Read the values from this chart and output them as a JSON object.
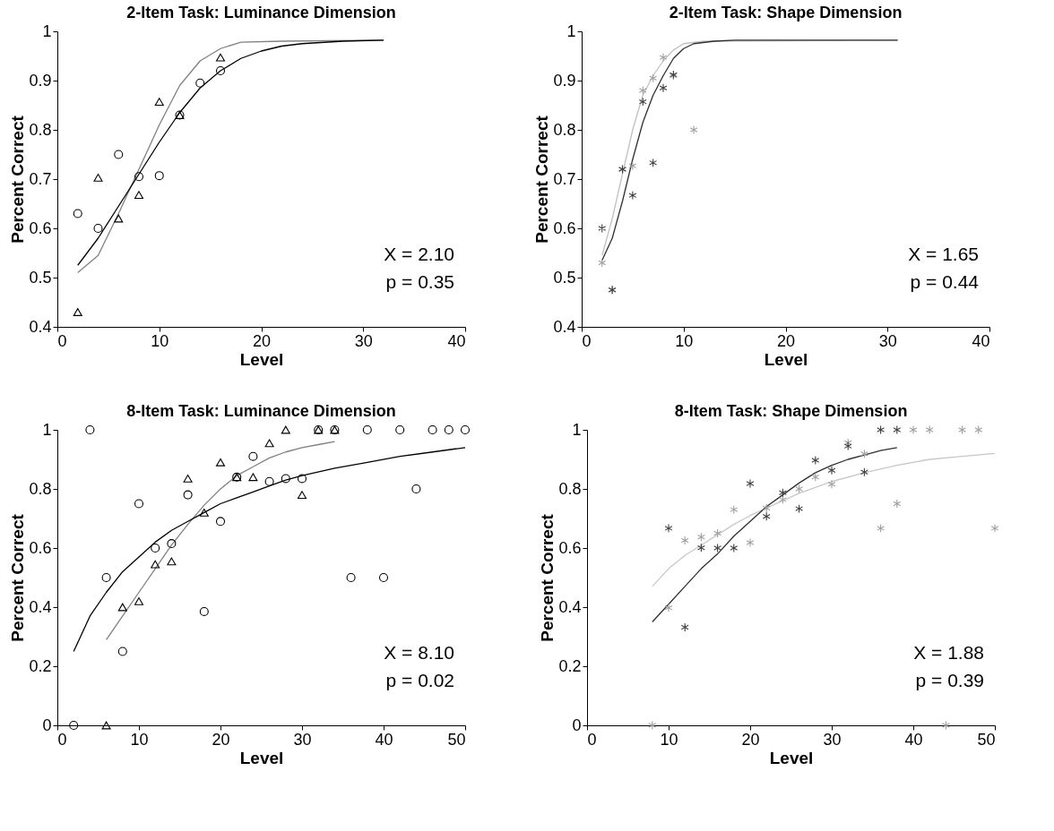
{
  "chart_data": [
    {
      "type": "scatter",
      "title": "2-Item Task: Luminance Dimension",
      "xlabel": "Level",
      "ylabel": "Percent Correct",
      "xlim": [
        0,
        40
      ],
      "ylim": [
        0.4,
        1
      ],
      "xticks": [
        0,
        10,
        20,
        30,
        40
      ],
      "yticks": [
        0.4,
        0.5,
        0.6,
        0.7,
        0.8,
        0.9,
        1
      ],
      "grid": false,
      "annotations": [
        "X = 2.10",
        "p = 0.35"
      ],
      "series": [
        {
          "type": "line",
          "color": "#808080",
          "x": [
            2,
            4,
            6,
            8,
            10,
            12,
            14,
            16,
            18,
            22,
            32
          ],
          "values": [
            0.51,
            0.545,
            0.63,
            0.72,
            0.81,
            0.89,
            0.94,
            0.965,
            0.978,
            0.98,
            0.982
          ]
        },
        {
          "type": "line",
          "color": "#000000",
          "x": [
            2,
            4,
            6,
            8,
            10,
            12,
            14,
            16,
            18,
            20,
            22,
            24,
            28,
            32
          ],
          "values": [
            0.525,
            0.58,
            0.645,
            0.71,
            0.775,
            0.835,
            0.885,
            0.92,
            0.945,
            0.96,
            0.97,
            0.975,
            0.98,
            0.982
          ]
        },
        {
          "marker": "circle",
          "color": "#000000",
          "x": [
            2,
            4,
            6,
            8,
            10,
            12,
            14,
            16
          ],
          "values": [
            0.63,
            0.6,
            0.75,
            0.705,
            0.707,
            0.83,
            0.895,
            0.92
          ]
        },
        {
          "marker": "triangle",
          "color": "#000000",
          "x": [
            2,
            4,
            6,
            8,
            10,
            12,
            16
          ],
          "values": [
            0.43,
            0.703,
            0.62,
            0.668,
            0.857,
            0.83,
            0.947
          ]
        }
      ]
    },
    {
      "type": "scatter",
      "title": "2-Item Task: Shape Dimension",
      "xlabel": "Level",
      "ylabel": "Percent Correct",
      "xlim": [
        0,
        40
      ],
      "ylim": [
        0.4,
        1
      ],
      "xticks": [
        0,
        10,
        20,
        30,
        40
      ],
      "yticks": [
        0.4,
        0.5,
        0.6,
        0.7,
        0.8,
        0.9,
        1
      ],
      "grid": false,
      "annotations": [
        "X = 1.65",
        "p = 0.44"
      ],
      "series": [
        {
          "type": "line",
          "color": "#c0c0c0",
          "x": [
            2,
            3,
            4,
            5,
            6,
            7,
            8,
            9,
            10,
            12,
            31
          ],
          "values": [
            0.545,
            0.62,
            0.71,
            0.8,
            0.87,
            0.91,
            0.94,
            0.962,
            0.975,
            0.98,
            0.982
          ]
        },
        {
          "type": "line",
          "color": "#303030",
          "x": [
            2,
            3,
            4,
            5,
            6,
            7,
            8,
            9,
            10,
            11,
            13,
            15,
            31
          ],
          "values": [
            0.535,
            0.58,
            0.655,
            0.74,
            0.815,
            0.87,
            0.91,
            0.945,
            0.965,
            0.975,
            0.98,
            0.982,
            0.982
          ]
        },
        {
          "marker": "cross",
          "color": "#a0a0a0",
          "x": [
            2,
            3,
            4,
            5,
            6,
            7,
            8,
            9,
            11
          ],
          "values": [
            0.53,
            0.475,
            0.72,
            0.727,
            0.88,
            0.905,
            0.947,
            0.91,
            0.8
          ]
        },
        {
          "marker": "cross",
          "color": "#404040",
          "x": [
            2,
            3,
            4,
            5,
            6,
            7,
            8,
            9
          ],
          "values": [
            0.6,
            0.475,
            0.72,
            0.667,
            0.857,
            0.733,
            0.885,
            0.912
          ]
        }
      ]
    },
    {
      "type": "scatter",
      "title": "8-Item Task: Luminance Dimension",
      "xlabel": "Level",
      "ylabel": "Percent Correct",
      "xlim": [
        0,
        50
      ],
      "ylim": [
        0,
        1
      ],
      "xticks": [
        0,
        10,
        20,
        30,
        40,
        50
      ],
      "yticks": [
        0,
        0.2,
        0.4,
        0.6,
        0.8,
        1
      ],
      "grid": false,
      "annotations": [
        "X = 8.10",
        "p = 0.02"
      ],
      "series": [
        {
          "type": "line",
          "color": "#808080",
          "x": [
            6,
            8,
            10,
            12,
            14,
            16,
            18,
            20,
            22,
            24,
            26,
            28,
            30,
            32,
            34
          ],
          "values": [
            0.29,
            0.37,
            0.45,
            0.53,
            0.61,
            0.68,
            0.745,
            0.8,
            0.845,
            0.875,
            0.905,
            0.925,
            0.94,
            0.95,
            0.96
          ]
        },
        {
          "type": "line",
          "color": "#000000",
          "x": [
            2,
            4,
            6,
            8,
            10,
            12,
            14,
            16,
            18,
            20,
            22,
            24,
            26,
            28,
            30,
            34,
            38,
            42,
            46,
            50
          ],
          "values": [
            0.25,
            0.37,
            0.45,
            0.52,
            0.57,
            0.62,
            0.66,
            0.69,
            0.72,
            0.75,
            0.77,
            0.79,
            0.81,
            0.83,
            0.845,
            0.87,
            0.89,
            0.91,
            0.925,
            0.94
          ]
        },
        {
          "marker": "circle",
          "color": "#000000",
          "x": [
            2,
            4,
            6,
            8,
            10,
            12,
            14,
            16,
            18,
            20,
            22,
            24,
            26,
            28,
            30,
            32,
            34,
            36,
            38,
            40,
            42,
            44,
            46,
            48,
            50
          ],
          "values": [
            0,
            1,
            0.5,
            0.25,
            0.75,
            0.6,
            0.615,
            0.78,
            0.385,
            0.69,
            0.84,
            0.91,
            0.825,
            0.835,
            0.835,
            1,
            1,
            0.5,
            1,
            0.5,
            1,
            0.8,
            1,
            1,
            1
          ]
        },
        {
          "marker": "triangle",
          "color": "#000000",
          "x": [
            6,
            8,
            10,
            12,
            14,
            16,
            18,
            20,
            22,
            24,
            26,
            28,
            30,
            32,
            34
          ],
          "values": [
            0,
            0.4,
            0.42,
            0.545,
            0.555,
            0.835,
            0.72,
            0.89,
            0.84,
            0.84,
            0.955,
            1,
            0.78,
            1,
            1
          ]
        }
      ]
    },
    {
      "type": "scatter",
      "title": "8-Item Task: Shape Dimension",
      "xlabel": "Level",
      "ylabel": "Percent Correct",
      "xlim": [
        0,
        50
      ],
      "ylim": [
        0,
        1
      ],
      "xticks": [
        0,
        10,
        20,
        30,
        40,
        50
      ],
      "yticks": [
        0,
        0.2,
        0.4,
        0.6,
        0.8,
        1
      ],
      "grid": false,
      "annotations": [
        "X = 1.88",
        "p = 0.39"
      ],
      "series": [
        {
          "type": "line",
          "color": "#c8c8c8",
          "x": [
            8,
            10,
            12,
            14,
            16,
            18,
            20,
            22,
            24,
            26,
            28,
            30,
            34,
            38,
            42,
            46,
            50
          ],
          "values": [
            0.47,
            0.53,
            0.575,
            0.61,
            0.645,
            0.68,
            0.71,
            0.735,
            0.76,
            0.785,
            0.805,
            0.825,
            0.855,
            0.88,
            0.9,
            0.91,
            0.92
          ]
        },
        {
          "type": "line",
          "color": "#303030",
          "x": [
            8,
            10,
            12,
            14,
            16,
            18,
            20,
            22,
            24,
            26,
            28,
            30,
            32,
            34,
            36,
            38
          ],
          "values": [
            0.35,
            0.41,
            0.47,
            0.53,
            0.58,
            0.64,
            0.69,
            0.74,
            0.78,
            0.82,
            0.855,
            0.88,
            0.9,
            0.915,
            0.93,
            0.94
          ]
        },
        {
          "marker": "cross",
          "color": "#a0a0a0",
          "x": [
            8,
            10,
            12,
            14,
            16,
            18,
            20,
            22,
            24,
            26,
            28,
            30,
            32,
            34,
            36,
            38,
            40,
            42,
            44,
            46,
            48,
            50
          ],
          "values": [
            0,
            0.398,
            0.626,
            0.637,
            0.65,
            0.73,
            0.618,
            0.735,
            0.764,
            0.8,
            0.84,
            0.816,
            0.956,
            0.919,
            0.667,
            0.75,
            1,
            1,
            0,
            1,
            1,
            0.667
          ]
        },
        {
          "marker": "cross",
          "color": "#404040",
          "x": [
            10,
            12,
            14,
            16,
            18,
            20,
            22,
            24,
            26,
            28,
            30,
            32,
            34,
            36,
            38
          ],
          "values": [
            0.667,
            0.332,
            0.601,
            0.6,
            0.6,
            0.818,
            0.707,
            0.787,
            0.733,
            0.897,
            0.863,
            0.945,
            0.857,
            1,
            1
          ]
        }
      ]
    }
  ]
}
